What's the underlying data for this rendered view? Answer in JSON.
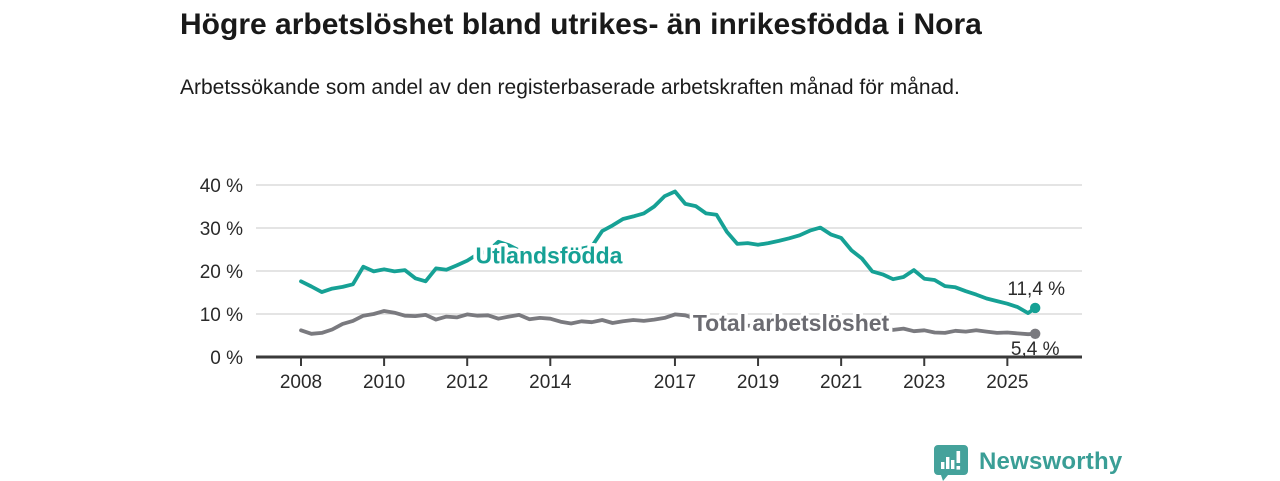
{
  "header": {
    "title": "Högre arbetslöshet bland utrikes- än inrikesfödda i Nora",
    "subtitle": "Arbetssökande som andel av den registerbaserade arbetskraften månad för månad."
  },
  "chart_data": {
    "type": "line",
    "title": "Högre arbetslöshet bland utrikes- än inrikesfödda i Nora",
    "xlabel": "",
    "ylabel": "",
    "x_axis": {
      "ticks": [
        2008,
        2010,
        2012,
        2014,
        2017,
        2019,
        2021,
        2023,
        2025
      ],
      "range": [
        2006.9,
        2026.8
      ]
    },
    "y_axis": {
      "ticks": [
        0,
        10,
        20,
        30,
        40
      ],
      "tick_labels": [
        "0 %",
        "10 %",
        "20 %",
        "30 %",
        "40 %"
      ],
      "range": [
        0,
        40
      ],
      "unit": "%"
    },
    "grid": true,
    "legend_position": "inline-labels",
    "series": [
      {
        "name": "Utlandsfödda",
        "color": "#16a195",
        "label_color": "#16a195",
        "label_pos": {
          "year": 2012.2,
          "pct": 21.7
        },
        "end_label": "11,4 %",
        "end_value": 11.4,
        "x": [
          2008.0,
          2008.25,
          2008.5,
          2008.75,
          2009.0,
          2009.25,
          2009.5,
          2009.75,
          2010.0,
          2010.25,
          2010.5,
          2010.75,
          2011.0,
          2011.25,
          2011.5,
          2011.75,
          2012.0,
          2012.25,
          2012.5,
          2012.75,
          2013.0,
          2013.25,
          2013.5,
          2013.75,
          2014.0,
          2014.25,
          2014.5,
          2014.75,
          2015.0,
          2015.25,
          2015.5,
          2015.75,
          2016.0,
          2016.25,
          2016.5,
          2016.75,
          2017.0,
          2017.25,
          2017.5,
          2017.75,
          2018.0,
          2018.25,
          2018.5,
          2018.75,
          2019.0,
          2019.25,
          2019.5,
          2019.75,
          2020.0,
          2020.25,
          2020.5,
          2020.75,
          2021.0,
          2021.25,
          2021.5,
          2021.75,
          2022.0,
          2022.25,
          2022.5,
          2022.75,
          2023.0,
          2023.25,
          2023.5,
          2023.75,
          2024.0,
          2024.25,
          2024.5,
          2024.75,
          2025.0,
          2025.25,
          2025.5,
          2025.67
        ],
        "values": [
          17.6,
          16.4,
          15.1,
          15.9,
          16.3,
          16.9,
          21.0,
          19.9,
          20.4,
          19.9,
          20.2,
          18.3,
          17.6,
          20.6,
          20.3,
          21.3,
          22.4,
          23.9,
          24.6,
          26.8,
          26.0,
          24.8,
          24.5,
          24.3,
          24.6,
          24.4,
          24.8,
          25.2,
          25.7,
          29.3,
          30.6,
          32.1,
          32.7,
          33.4,
          35.0,
          37.4,
          38.5,
          35.6,
          35.1,
          33.4,
          33.1,
          29.1,
          26.3,
          26.5,
          26.1,
          26.5,
          27.0,
          27.6,
          28.3,
          29.4,
          30.1,
          28.5,
          27.7,
          24.8,
          22.9,
          19.9,
          19.2,
          18.1,
          18.6,
          20.2,
          18.2,
          17.9,
          16.5,
          16.2,
          15.3,
          14.5,
          13.6,
          13.0,
          12.4,
          11.6,
          10.2,
          11.4
        ]
      },
      {
        "name": "Total arbetslöshet",
        "color": "#7a7a7f",
        "label_color": "#6b6b71",
        "label_pos": {
          "year": 2017.43,
          "pct": 6.0
        },
        "end_label": "5,4 %",
        "end_value": 5.4,
        "x": [
          2008.0,
          2008.25,
          2008.5,
          2008.75,
          2009.0,
          2009.25,
          2009.5,
          2009.75,
          2010.0,
          2010.25,
          2010.5,
          2010.75,
          2011.0,
          2011.25,
          2011.5,
          2011.75,
          2012.0,
          2012.25,
          2012.5,
          2012.75,
          2013.0,
          2013.25,
          2013.5,
          2013.75,
          2014.0,
          2014.25,
          2014.5,
          2014.75,
          2015.0,
          2015.25,
          2015.5,
          2015.75,
          2016.0,
          2016.25,
          2016.5,
          2016.75,
          2017.0,
          2017.25,
          2017.5,
          2017.75,
          2018.0,
          2018.25,
          2018.5,
          2018.75,
          2019.0,
          2019.25,
          2019.5,
          2019.75,
          2020.0,
          2020.25,
          2020.5,
          2020.75,
          2021.0,
          2021.25,
          2021.5,
          2021.75,
          2022.0,
          2022.25,
          2022.5,
          2022.75,
          2023.0,
          2023.25,
          2023.5,
          2023.75,
          2024.0,
          2024.25,
          2024.5,
          2024.75,
          2025.0,
          2025.25,
          2025.5,
          2025.67
        ],
        "values": [
          6.2,
          5.4,
          5.6,
          6.4,
          7.7,
          8.4,
          9.6,
          10.0,
          10.7,
          10.3,
          9.6,
          9.5,
          9.8,
          8.7,
          9.4,
          9.2,
          9.9,
          9.6,
          9.7,
          8.9,
          9.4,
          9.8,
          8.8,
          9.1,
          8.9,
          8.2,
          7.8,
          8.3,
          8.1,
          8.6,
          7.9,
          8.3,
          8.6,
          8.4,
          8.7,
          9.1,
          9.9,
          9.7,
          8.9,
          8.4,
          8.2,
          7.8,
          7.5,
          7.3,
          7.2,
          7.0,
          7.1,
          7.3,
          7.6,
          8.1,
          8.4,
          8.0,
          7.8,
          7.4,
          7.1,
          6.9,
          7.0,
          6.3,
          6.6,
          6.0,
          6.2,
          5.7,
          5.6,
          6.1,
          5.9,
          6.2,
          5.9,
          5.6,
          5.7,
          5.5,
          5.3,
          5.4
        ]
      }
    ]
  },
  "footer": {
    "brand": "Newsworthy"
  },
  "style": {
    "accent_teal": "#16a195",
    "line_gray": "#7a7a7f",
    "grid_color": "#dcdcdc",
    "axis_color": "#3a3a3a",
    "text_color": "#2a2a2a"
  }
}
